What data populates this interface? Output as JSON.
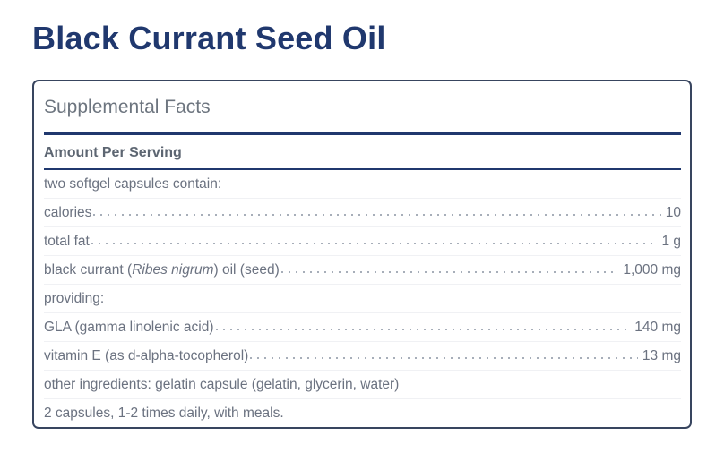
{
  "page": {
    "title": "Black Currant Seed Oil"
  },
  "panel": {
    "heading": "Supplemental Facts",
    "column_header": "Amount Per Serving",
    "rows": [
      {
        "label": "two softgel capsules contain:",
        "value": ""
      },
      {
        "label": "calories",
        "value": "10"
      },
      {
        "label": "total fat",
        "value": "1 g"
      },
      {
        "label_pre": "black currant (",
        "label_italic": "Ribes nigrum",
        "label_post": ") oil (seed)",
        "value": "1,000 mg"
      },
      {
        "label": "providing:",
        "value": ""
      },
      {
        "label": "GLA (gamma linolenic acid)",
        "value": "140 mg"
      },
      {
        "label": "vitamin E (as d-alpha-tocopherol)",
        "value": "13 mg"
      },
      {
        "label": "other ingredients: gelatin capsule (gelatin, glycerin, water)",
        "value": ""
      },
      {
        "label": "2 capsules, 1-2 times daily, with meals.",
        "value": ""
      }
    ]
  },
  "colors": {
    "accent": "#20386e",
    "panel_border": "#38455f",
    "text": "#6b7280",
    "heading": "#6d757f",
    "dots": "#a7aeb9",
    "rowline": "#f0f1f4"
  }
}
